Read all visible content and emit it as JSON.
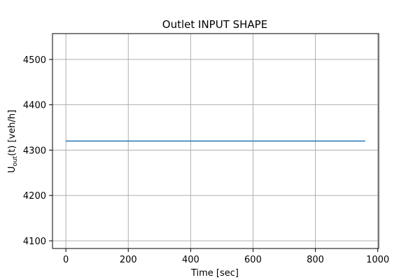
{
  "chart_data": {
    "type": "line",
    "title": "Outlet INPUT SHAPE",
    "xlabel": "Time [sec]",
    "ylabel": {
      "main": "U",
      "sub": "out",
      "rest": "(t) [veh/h]"
    },
    "xlim": [
      -43,
      1003
    ],
    "ylim": [
      4083,
      4557
    ],
    "xticks": [
      0,
      200,
      400,
      600,
      800,
      1000
    ],
    "yticks": [
      4100,
      4200,
      4300,
      4400,
      4500
    ],
    "grid": true,
    "series": [
      {
        "color": "#1f77b4",
        "x": [
          0,
          960
        ],
        "y": [
          4320,
          4320
        ]
      }
    ]
  }
}
